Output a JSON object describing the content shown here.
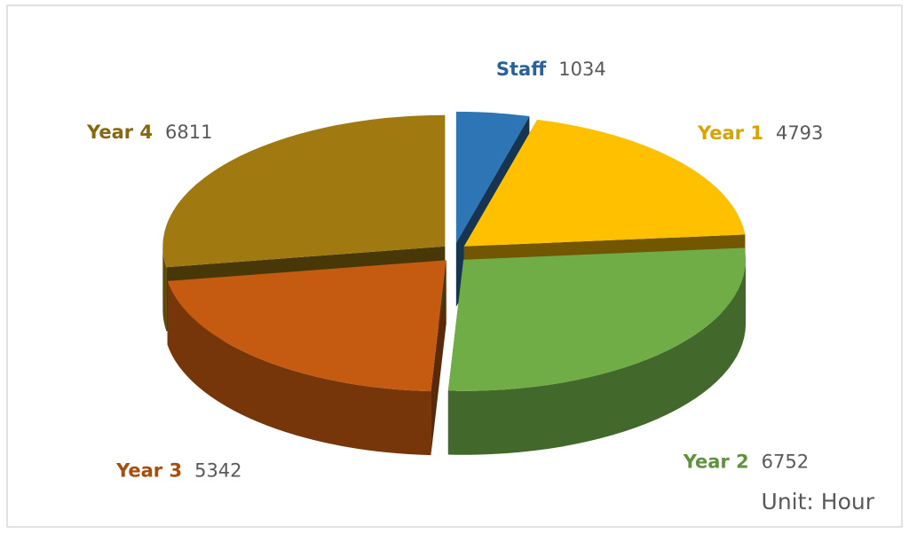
{
  "chart_data": {
    "type": "pie",
    "categories": [
      "Staff",
      "Year 1",
      "Year 2",
      "Year 3",
      "Year 4"
    ],
    "values": [
      1034,
      4793,
      6752,
      5342,
      6811
    ],
    "colors": [
      "#2e75b6",
      "#ffc000",
      "#70ad47",
      "#c55a11",
      "#a07a10"
    ],
    "annotation": "Unit: Hour"
  }
}
